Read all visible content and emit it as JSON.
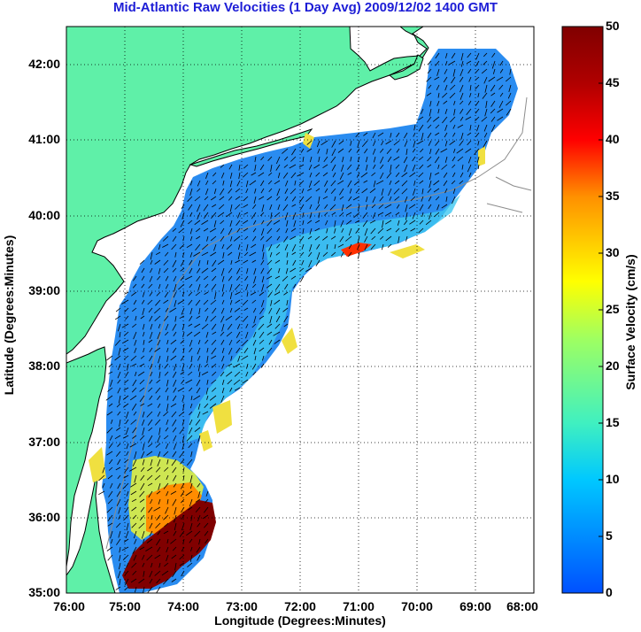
{
  "title": "Mid-Atlantic Raw Velocities (1 Day Avg) 2009/12/02 1400 GMT",
  "x_axis_label": "Longitude (Degrees:Minutes)",
  "y_axis_label": "Latitude (Degrees:Minutes)",
  "colorbar_label": "Surface Velocity (cm/s)",
  "x_ticks": [
    "76:00",
    "75:00",
    "74:00",
    "73:00",
    "72:00",
    "71:00",
    "70:00",
    "69:00",
    "68:00"
  ],
  "y_ticks": [
    "42:00",
    "41:00",
    "40:00",
    "39:00",
    "38:00",
    "37:00",
    "36:00",
    "35:00"
  ],
  "colorbar_ticks": [
    "50",
    "45",
    "40",
    "35",
    "30",
    "25",
    "20",
    "15",
    "10",
    "5",
    "0"
  ],
  "colors": {
    "title": "#1d1dd6",
    "land": "#5ff0a8",
    "velocity_low": "#1060ff",
    "velocity_mid": "#40e0e0",
    "velocity_high": "#800000",
    "grid": "#000000",
    "bathymetry": "#8c8c8c"
  },
  "chart_data": {
    "type": "map",
    "xlim": [
      -76,
      -68
    ],
    "ylim": [
      35,
      42.5
    ],
    "colorbar_range": [
      0,
      50
    ],
    "grid": "dotted",
    "colormap": "jet"
  }
}
